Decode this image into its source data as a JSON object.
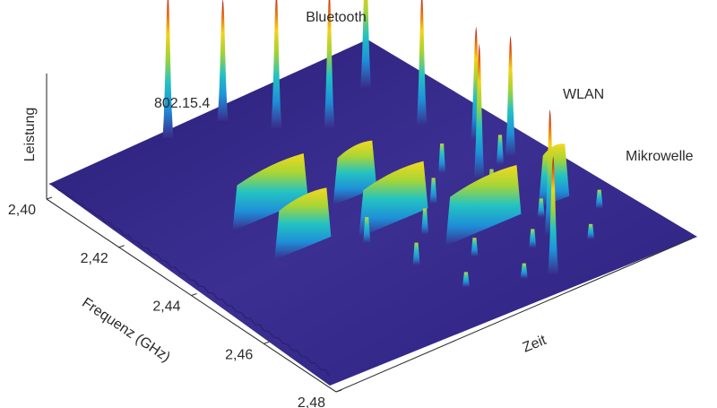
{
  "chart_data": {
    "type": "3d-surface",
    "title": "",
    "xlabel": "Frequenz (GHz)",
    "ylabel": "Zeit",
    "zlabel": "Leistung",
    "xlim": [
      2.4,
      2.48
    ],
    "x_ticks": [
      "2,40",
      "2,42",
      "2,44",
      "2,46",
      "2,48"
    ],
    "grid": false,
    "legend": "none",
    "colormap": [
      "#3a2a8a",
      "#1f78d4",
      "#1fb8c8",
      "#8fd13a",
      "#f2d21a",
      "#e85a12",
      "#b01010"
    ],
    "annotations": [
      {
        "text": "Bluetooth",
        "target": "bluetooth"
      },
      {
        "text": "802.15.4",
        "target": "802154"
      },
      {
        "text": "WLAN",
        "target": "wlan"
      },
      {
        "text": "Mikrowelle",
        "target": "mikrowelle"
      }
    ],
    "bluetooth_peaks": [
      {
        "f": 2.402,
        "t": 0.35,
        "power": 1.0
      },
      {
        "f": 2.412,
        "t": 0.58,
        "power": 0.95
      },
      {
        "f": 2.404,
        "t": 0.5,
        "power": 0.85
      },
      {
        "f": 2.418,
        "t": 0.68,
        "power": 0.95
      },
      {
        "f": 2.412,
        "t": 0.86,
        "power": 0.95
      },
      {
        "f": 2.428,
        "t": 0.86,
        "power": 0.92
      },
      {
        "f": 2.438,
        "t": 0.92,
        "power": 0.8
      },
      {
        "f": 2.448,
        "t": 0.82,
        "power": 0.95
      },
      {
        "f": 2.446,
        "t": 0.94,
        "power": 0.85
      },
      {
        "f": 2.47,
        "t": 0.8,
        "power": 0.88
      },
      {
        "f": 2.48,
        "t": 0.7,
        "power": 0.82
      }
    ],
    "wlan_bursts": [
      {
        "f": 2.433,
        "t0": 0.22,
        "t1": 0.44,
        "power": 0.58
      },
      {
        "f": 2.438,
        "t0": 0.48,
        "t1": 0.6,
        "power": 0.6
      },
      {
        "f": 2.449,
        "t0": 0.44,
        "t1": 0.64,
        "power": 0.6
      },
      {
        "f": 2.461,
        "t0": 0.58,
        "t1": 0.8,
        "power": 0.62
      },
      {
        "f": 2.445,
        "t0": 0.22,
        "t1": 0.38,
        "power": 0.62
      },
      {
        "f": 2.462,
        "t0": 0.86,
        "t1": 0.94,
        "power": 0.66
      }
    ],
    "microwave_region": {
      "f0": 2.44,
      "f1": 2.48,
      "t0": 0.4,
      "t1": 1.0,
      "power": 0.42
    }
  }
}
